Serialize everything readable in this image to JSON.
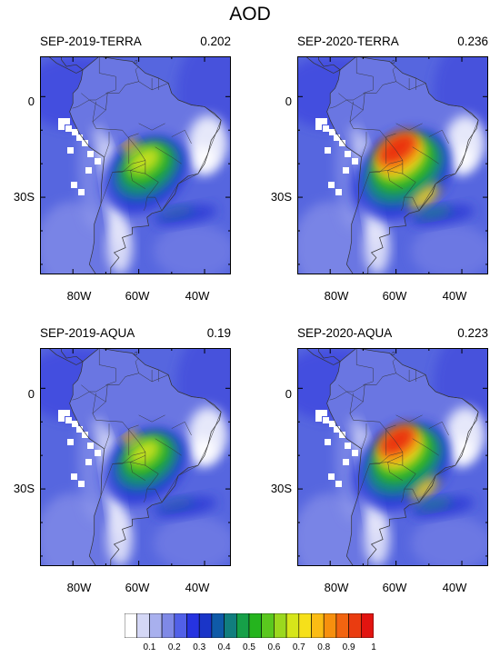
{
  "title": "AOD",
  "panels": [
    {
      "label": "SEP-2019-TERRA",
      "mean": "0.202",
      "intensity": 0.55
    },
    {
      "label": "SEP-2020-TERRA",
      "mean": "0.236",
      "intensity": 1.0
    },
    {
      "label": "SEP-2019-AQUA",
      "mean": "0.19",
      "intensity": 0.5
    },
    {
      "label": "SEP-2020-AQUA",
      "mean": "0.223",
      "intensity": 0.92
    }
  ],
  "axes": {
    "x_ticks": [
      "80W",
      "60W",
      "40W"
    ],
    "y_ticks": [
      "0",
      "30S"
    ]
  },
  "colorbar": {
    "labels": [
      "0.1",
      "0.2",
      "0.3",
      "0.4",
      "0.5",
      "0.6",
      "0.7",
      "0.8",
      "0.9",
      "1"
    ],
    "colors": [
      "#ffffff",
      "#d4d7f6",
      "#a8b0ee",
      "#7f89e6",
      "#5160e8",
      "#2633e0",
      "#1a35c8",
      "#0f5aa8",
      "#117e7e",
      "#16a048",
      "#25b41e",
      "#5ac81e",
      "#9bd81e",
      "#d6e61a",
      "#f6e01a",
      "#fbbc14",
      "#f7900e",
      "#f26410",
      "#ea3c10",
      "#e21410"
    ]
  }
}
